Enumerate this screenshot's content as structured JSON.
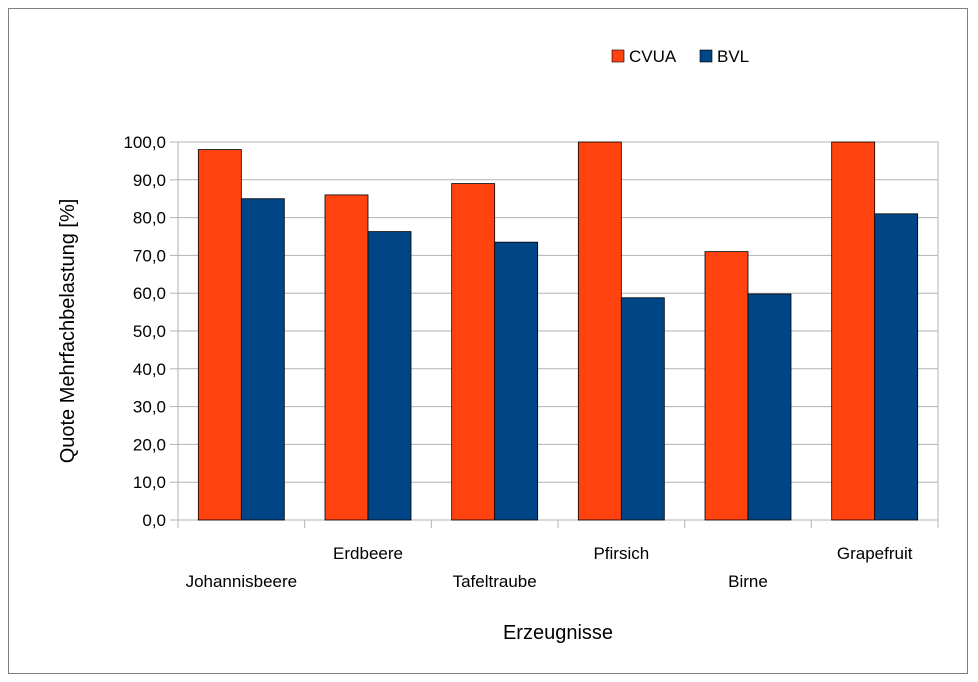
{
  "chart_data": {
    "type": "bar",
    "title": "",
    "xlabel": "Erzeugnisse",
    "ylabel": "Quote Mehrfachbelastung [%]",
    "ylim": [
      0,
      100
    ],
    "yticks": [
      "0,0",
      "10,0",
      "20,0",
      "30,0",
      "40,0",
      "50,0",
      "60,0",
      "70,0",
      "80,0",
      "90,0",
      "100,0"
    ],
    "categories": [
      "Johannisbeere",
      "Erdbeere",
      "Tafeltraube",
      "Pfirsich",
      "Birne",
      "Grapefruit"
    ],
    "series": [
      {
        "name": "CVUA",
        "color": "#ff420e",
        "values": [
          98,
          86,
          89,
          100,
          71,
          100
        ]
      },
      {
        "name": "BVL",
        "color": "#004586",
        "values": [
          85,
          76.3,
          73.5,
          58.8,
          59.8,
          81
        ]
      }
    ],
    "grid": true,
    "legend": "top-right"
  }
}
